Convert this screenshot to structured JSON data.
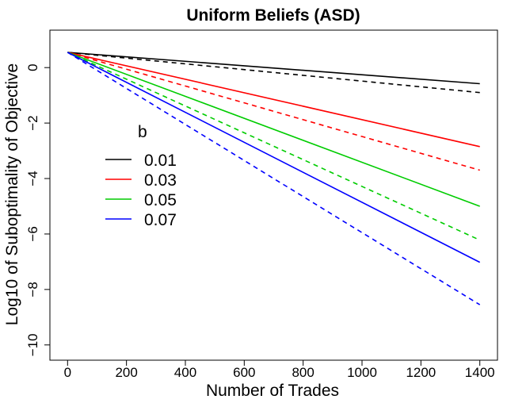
{
  "chart_data": {
    "type": "line",
    "title": "Uniform Beliefs (ASD)",
    "xlabel": "Number of Trades",
    "ylabel": "Log10 of Suboptimality of Objective",
    "xlim": [
      -60,
      1460
    ],
    "ylim": [
      -10.55,
      1.35
    ],
    "x_ticks": [
      0,
      200,
      400,
      600,
      800,
      1000,
      1200,
      1400
    ],
    "y_ticks": [
      0,
      -2,
      -4,
      -6,
      -8,
      -10
    ],
    "grid": false,
    "legend": {
      "title": "b",
      "placement": "center-left",
      "entries": [
        "0.01",
        "0.03",
        "0.05",
        "0.07"
      ]
    },
    "series": [
      {
        "name": "0.01",
        "style": "solid",
        "color": "#000000",
        "x": [
          0,
          1400
        ],
        "y": [
          0.55,
          -0.58
        ]
      },
      {
        "name": "0.01",
        "style": "dashed",
        "color": "#000000",
        "x": [
          0,
          1400
        ],
        "y": [
          0.55,
          -0.9
        ]
      },
      {
        "name": "0.03",
        "style": "solid",
        "color": "#ff0000",
        "x": [
          0,
          1400
        ],
        "y": [
          0.55,
          -2.85
        ]
      },
      {
        "name": "0.03",
        "style": "dashed",
        "color": "#ff0000",
        "x": [
          0,
          1400
        ],
        "y": [
          0.55,
          -3.7
        ]
      },
      {
        "name": "0.05",
        "style": "solid",
        "color": "#00cc00",
        "x": [
          0,
          1400
        ],
        "y": [
          0.55,
          -5.0
        ]
      },
      {
        "name": "0.05",
        "style": "dashed",
        "color": "#00cc00",
        "x": [
          0,
          1400
        ],
        "y": [
          0.55,
          -6.22
        ]
      },
      {
        "name": "0.07",
        "style": "solid",
        "color": "#0000ff",
        "x": [
          0,
          1400
        ],
        "y": [
          0.55,
          -7.02
        ]
      },
      {
        "name": "0.07",
        "style": "dashed",
        "color": "#0000ff",
        "x": [
          0,
          1400
        ],
        "y": [
          0.55,
          -8.55
        ]
      }
    ]
  }
}
